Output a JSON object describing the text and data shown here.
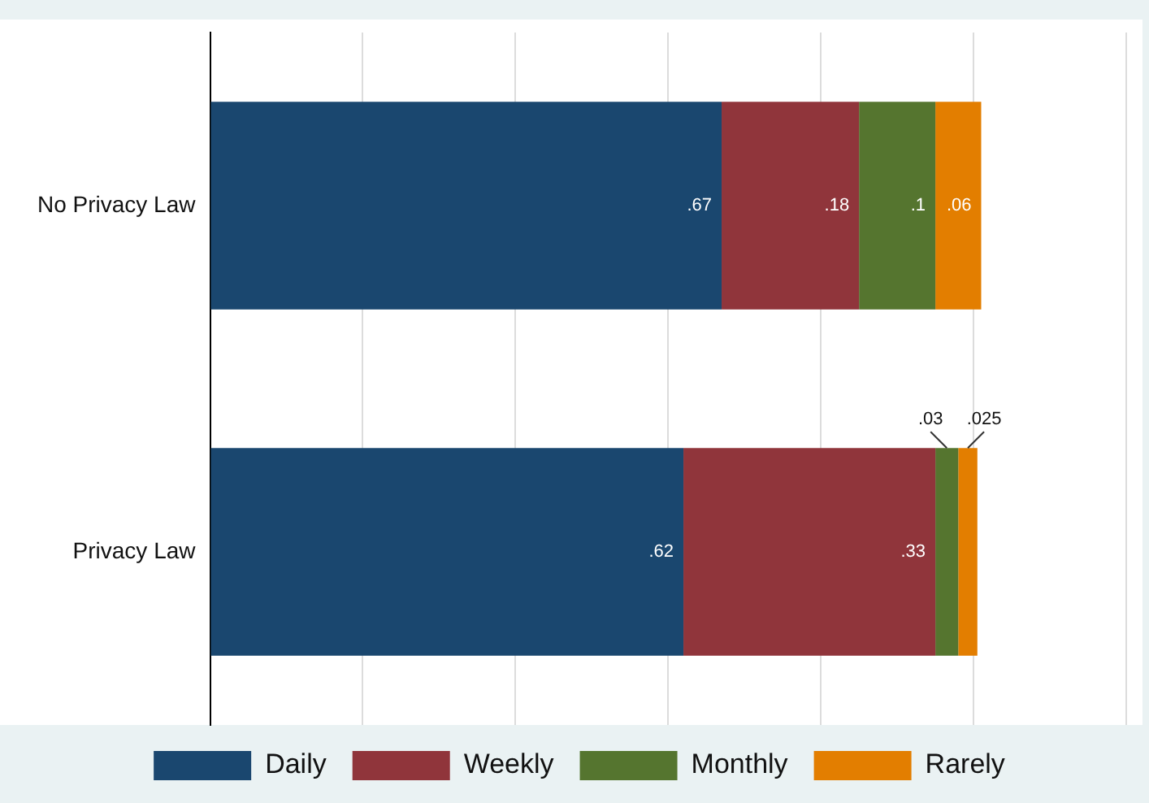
{
  "chart_data": {
    "type": "bar",
    "orientation": "horizontal",
    "stacked": true,
    "categories": [
      "No Privacy Law",
      "Privacy Law"
    ],
    "series": [
      {
        "name": "Daily",
        "color": "#1a476f",
        "values": [
          0.67,
          0.62
        ],
        "value_labels": [
          ".67",
          ".62"
        ]
      },
      {
        "name": "Weekly",
        "color": "#90353b",
        "values": [
          0.18,
          0.33
        ],
        "value_labels": [
          ".18",
          ".33"
        ]
      },
      {
        "name": "Monthly",
        "color": "#55752f",
        "values": [
          0.1,
          0.03
        ],
        "value_labels": [
          ".1",
          ".03"
        ]
      },
      {
        "name": "Rarely",
        "color": "#e37e00",
        "values": [
          0.06,
          0.025
        ],
        "value_labels": [
          ".06",
          ".025"
        ]
      }
    ],
    "tick_labels": "y",
    "grid": "x",
    "legend": "bottom"
  }
}
